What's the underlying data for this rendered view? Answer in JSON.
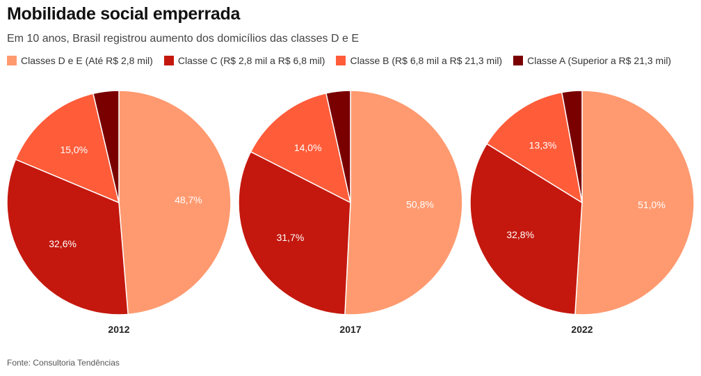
{
  "title": "Mobilidade social emperrada",
  "subtitle": "Em 10 anos, Brasil registrou aumento dos domicílios das classes D e E",
  "source": "Fonte: Consultoria Tendências",
  "chart_data": {
    "type": "pie",
    "title": "Mobilidade social emperrada",
    "series_names": [
      "Classes D e E (Até R$ 2,8 mil)",
      "Classe C (R$ 2,8 mil a R$ 6,8 mil)",
      "Classe B (R$ 6,8 mil a R$ 21,3 mil)",
      "Classe A (Superior a R$ 21,3 mil)"
    ],
    "colors": [
      "#FF9A70",
      "#C4180E",
      "#FF5C3A",
      "#7A0000"
    ],
    "legend_position": "top-left",
    "charts": [
      {
        "year": "2012",
        "values": [
          48.7,
          32.6,
          15.0,
          3.7
        ],
        "labels": [
          "48,7%",
          "32,6%",
          "15,0%",
          ""
        ]
      },
      {
        "year": "2017",
        "values": [
          50.8,
          31.7,
          14.0,
          3.5
        ],
        "labels": [
          "50,8%",
          "31,7%",
          "14,0%",
          ""
        ]
      },
      {
        "year": "2022",
        "values": [
          51.0,
          32.8,
          13.3,
          2.9
        ],
        "labels": [
          "51,0%",
          "32,8%",
          "13,3%",
          ""
        ]
      }
    ]
  }
}
